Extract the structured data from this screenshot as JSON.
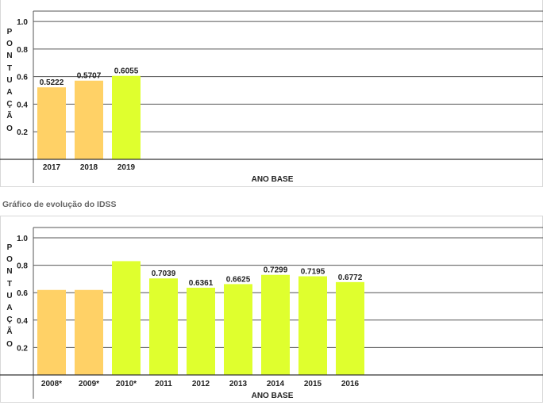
{
  "caption": "Gráfico de evolução do IDSS",
  "chart_data": [
    {
      "type": "bar",
      "ylabel": "PONTUAÇÃO",
      "xlabel": "ANO BASE",
      "ylim": [
        0,
        1.0
      ],
      "yticks": [
        "0.2",
        "0.4",
        "0.6",
        "0.8",
        "1.0"
      ],
      "grid": true,
      "categories": [
        "2017",
        "2018",
        "2019"
      ],
      "values": [
        0.5222,
        0.5707,
        0.6055
      ],
      "labels": [
        "0.5222",
        "0.5707",
        "0.6055"
      ],
      "colors": [
        "#ffd166",
        "#ffd166",
        "#dfff2e"
      ]
    },
    {
      "type": "bar",
      "ylabel": "PONTUAÇÃO",
      "xlabel": "ANO BASE",
      "ylim": [
        0,
        1.0
      ],
      "yticks": [
        "0.2",
        "0.4",
        "0.6",
        "0.8",
        "1.0"
      ],
      "grid": true,
      "categories": [
        "2008*",
        "2009*",
        "2010*",
        "2011",
        "2012",
        "2013",
        "2014",
        "2015",
        "2016"
      ],
      "values": [
        0.62,
        0.62,
        0.83,
        0.7039,
        0.6361,
        0.6625,
        0.7299,
        0.7195,
        0.6772
      ],
      "labels": [
        "",
        "",
        "",
        "0.7039",
        "0.6361",
        "0.6625",
        "0.7299",
        "0.7195",
        "0.6772"
      ],
      "colors": [
        "#ffd166",
        "#ffd166",
        "#dfff2e",
        "#dfff2e",
        "#dfff2e",
        "#dfff2e",
        "#dfff2e",
        "#dfff2e",
        "#dfff2e"
      ]
    }
  ]
}
